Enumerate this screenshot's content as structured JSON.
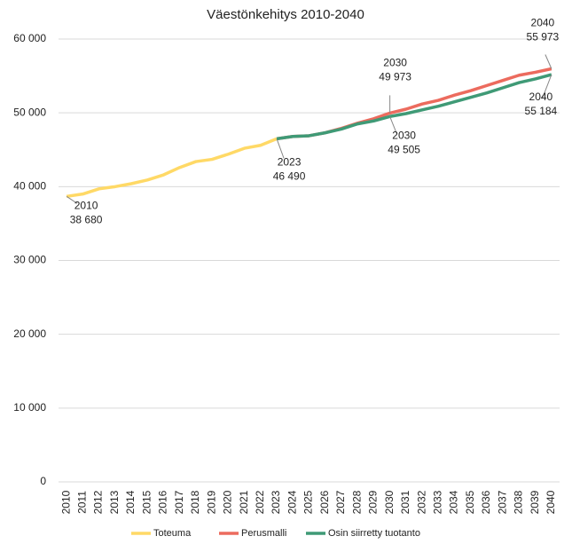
{
  "chart_data": {
    "type": "line",
    "title": "Väestönkehitys 2010-2040",
    "categories": [
      "2010",
      "2011",
      "2012",
      "2013",
      "2014",
      "2015",
      "2016",
      "2017",
      "2018",
      "2019",
      "2020",
      "2021",
      "2022",
      "2023",
      "2024",
      "2025",
      "2026",
      "2027",
      "2028",
      "2029",
      "2030",
      "2031",
      "2032",
      "2033",
      "2034",
      "2035",
      "2036",
      "2037",
      "2038",
      "2039",
      "2040"
    ],
    "series": [
      {
        "name": "Toteuma",
        "color": "#ffd966",
        "values": [
          38680,
          39000,
          39700,
          40000,
          40400,
          40900,
          41600,
          42600,
          43400,
          43700,
          44400,
          45200,
          45600,
          46490,
          null,
          null,
          null,
          null,
          null,
          null,
          null,
          null,
          null,
          null,
          null,
          null,
          null,
          null,
          null,
          null,
          null
        ],
        "value_labels": [
          "38 680",
          null,
          null,
          null,
          null,
          null,
          null,
          null,
          null,
          null,
          null,
          null,
          null,
          "46 490",
          null,
          null,
          null,
          null,
          null,
          null,
          null,
          null,
          null,
          null,
          null,
          null,
          null,
          null,
          null,
          null,
          null
        ]
      },
      {
        "name": "Perusmalli",
        "color": "#ec6b5e",
        "values": [
          null,
          null,
          null,
          null,
          null,
          null,
          null,
          null,
          null,
          null,
          null,
          null,
          null,
          46490,
          46800,
          46900,
          47300,
          47900,
          48600,
          49200,
          49973,
          50500,
          51200,
          51700,
          52400,
          53000,
          53700,
          54400,
          55100,
          55500,
          55973
        ],
        "value_labels": [
          null,
          null,
          null,
          null,
          null,
          null,
          null,
          null,
          null,
          null,
          null,
          null,
          null,
          null,
          null,
          null,
          null,
          null,
          null,
          null,
          "49 973",
          null,
          null,
          null,
          null,
          null,
          null,
          null,
          null,
          null,
          "55 973"
        ]
      },
      {
        "name": "Osin siirretty tuotanto",
        "color": "#3f9a76",
        "values": [
          null,
          null,
          null,
          null,
          null,
          null,
          null,
          null,
          null,
          null,
          null,
          null,
          null,
          46490,
          46800,
          46900,
          47300,
          47800,
          48500,
          48900,
          49505,
          49900,
          50400,
          50900,
          51500,
          52100,
          52700,
          53400,
          54100,
          54600,
          55184
        ],
        "value_labels": [
          null,
          null,
          null,
          null,
          null,
          null,
          null,
          null,
          null,
          null,
          null,
          null,
          null,
          null,
          null,
          null,
          null,
          null,
          null,
          null,
          "49 505",
          null,
          null,
          null,
          null,
          null,
          null,
          null,
          null,
          null,
          "55 184"
        ]
      }
    ],
    "ylim": [
      0,
      60000
    ],
    "yticks": [
      0,
      {
        "value": 10000,
        "label": "10 000"
      },
      {
        "value": 20000,
        "label": "20 000"
      },
      {
        "value": 30000,
        "label": "30 000"
      },
      {
        "value": 40000,
        "label": "40 000"
      },
      {
        "value": 50000,
        "label": "50 000"
      },
      {
        "value": 60000,
        "label": "60 000"
      }
    ],
    "grid": true,
    "legend": "bottom"
  }
}
